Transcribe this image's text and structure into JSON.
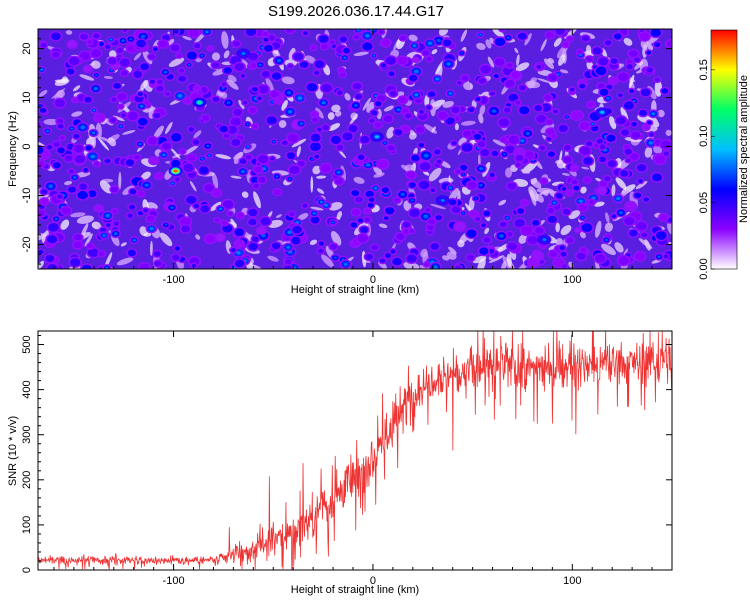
{
  "title": "S199.2026.036.17.44.G17",
  "chart_data": [
    {
      "type": "heatmap",
      "name": "spectrogram",
      "title": "S199.2026.036.17.44.G17",
      "xlabel": "Height of straight line (km)",
      "ylabel": "Frequency (Hz)",
      "xlim": [
        -168,
        150
      ],
      "ylim": [
        -25,
        24
      ],
      "xticks": [
        -100,
        0,
        100
      ],
      "yticks": [
        -20,
        -10,
        0,
        10,
        20
      ],
      "colorbar": {
        "label": "Normalized spectral amplitude",
        "range": [
          0,
          0.18
        ],
        "ticks": [
          0.0,
          0.05,
          0.1,
          0.15
        ],
        "tick_labels": [
          "0.00",
          "0.05",
          "0.10",
          "0.15"
        ],
        "colormap": [
          "#ffffff",
          "#8b00ff",
          "#0000ff",
          "#00bfff",
          "#00ff66",
          "#ffff00",
          "#ff0000"
        ]
      },
      "hotspots": [
        {
          "x": -99,
          "y": -5,
          "value": 0.17
        },
        {
          "x": -87,
          "y": 9,
          "value": 0.11
        },
        {
          "x": -65,
          "y": 19,
          "value": 0.08
        },
        {
          "x": 2,
          "y": 2,
          "value": 0.09
        },
        {
          "x": 35,
          "y": -11,
          "value": 0.08
        },
        {
          "x": 115,
          "y": 7,
          "value": 0.09
        },
        {
          "x": 86,
          "y": -19,
          "value": 0.08
        }
      ],
      "background_level": 0.02,
      "blob_level": 0.045
    },
    {
      "type": "line",
      "name": "snr",
      "xlabel": "Height of straight line (km)",
      "ylabel": "SNR (10 * v/v)",
      "xlim": [
        -168,
        150
      ],
      "ylim": [
        0,
        530
      ],
      "xticks": [
        -100,
        0,
        100
      ],
      "yticks": [
        0,
        100,
        200,
        300,
        400,
        500
      ],
      "color": "#ee3333",
      "envelope": {
        "x": [
          -168,
          -80,
          -72,
          -60,
          -45,
          -30,
          -15,
          0,
          10,
          20,
          30,
          45,
          60,
          80,
          100,
          120,
          150
        ],
        "mean": [
          22,
          22,
          30,
          45,
          75,
          120,
          180,
          250,
          320,
          390,
          430,
          440,
          450,
          450,
          450,
          455,
          470
        ],
        "noise": [
          8,
          8,
          14,
          25,
          35,
          45,
          50,
          55,
          55,
          50,
          45,
          45,
          45,
          45,
          45,
          45,
          45
        ]
      },
      "spikes": [
        {
          "x": -72,
          "y": 95
        },
        {
          "x": -52,
          "y": 208
        },
        {
          "x": -35,
          "y": 237
        },
        {
          "x": 40,
          "y": 265
        },
        {
          "x": 60,
          "y": 395
        },
        {
          "x": 70,
          "y": 530
        },
        {
          "x": 145,
          "y": 530
        }
      ]
    }
  ]
}
